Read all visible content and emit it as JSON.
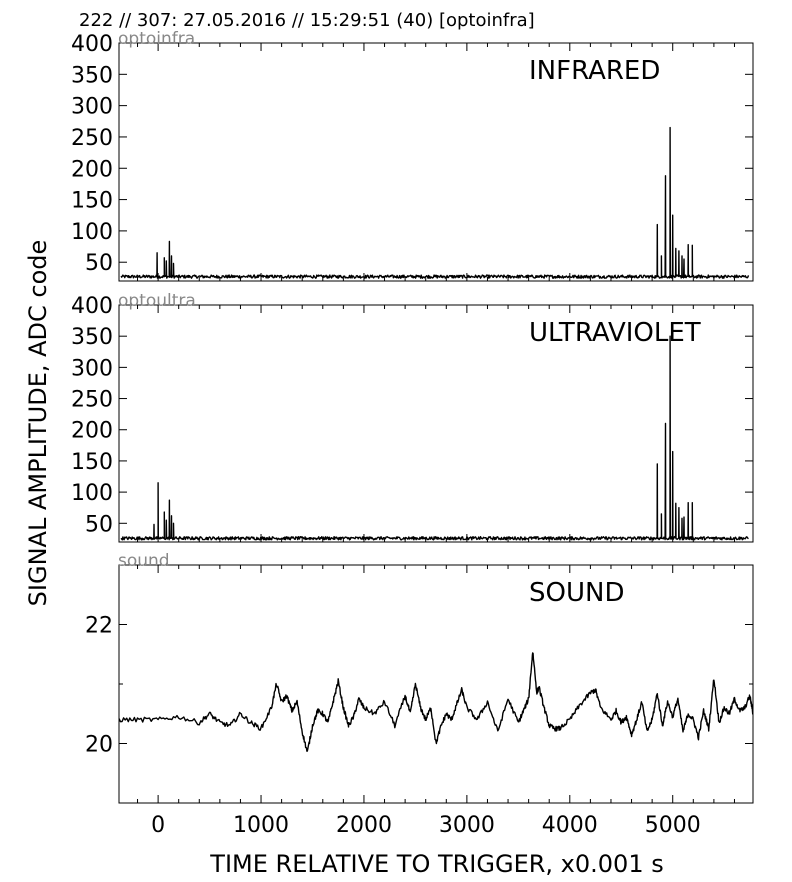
{
  "header": "222 // 307:   27.05.2016 // 15:29:51 (40)  [optoinfra]",
  "ylabel": "SIGNAL AMPLITUDE,  ADC code",
  "xlabel": "TIME RELATIVE TO TRIGGER,   x0.001 s",
  "colors": {
    "line": "#000000",
    "tag": "#888888"
  },
  "chart_data": [
    {
      "type": "line",
      "tag": "optoinfra",
      "title": "INFRARED",
      "xlim": [
        -380,
        5780
      ],
      "ylim": [
        20,
        400
      ],
      "xticks": [
        0,
        1000,
        2000,
        3000,
        4000,
        5000
      ],
      "yticks": [
        50,
        100,
        150,
        200,
        250,
        300,
        350,
        400
      ],
      "baseline": 27,
      "noise": 2.5,
      "spikes": [
        [
          -10,
          65
        ],
        [
          60,
          57
        ],
        [
          80,
          52
        ],
        [
          110,
          83
        ],
        [
          130,
          60
        ],
        [
          150,
          48
        ],
        [
          4850,
          110
        ],
        [
          4890,
          60
        ],
        [
          4930,
          188
        ],
        [
          4975,
          265
        ],
        [
          5000,
          125
        ],
        [
          5030,
          72
        ],
        [
          5060,
          68
        ],
        [
          5090,
          60
        ],
        [
          5110,
          55
        ],
        [
          5150,
          78
        ],
        [
          5190,
          77
        ]
      ]
    },
    {
      "type": "line",
      "tag": "optoultra",
      "title": "ULTRAVIOLET",
      "xlim": [
        -380,
        5780
      ],
      "ylim": [
        20,
        400
      ],
      "xticks": [
        0,
        1000,
        2000,
        3000,
        4000,
        5000
      ],
      "yticks": [
        50,
        100,
        150,
        200,
        250,
        300,
        350,
        400
      ],
      "baseline": 26,
      "noise": 2.5,
      "spikes": [
        [
          -40,
          48
        ],
        [
          0,
          115
        ],
        [
          60,
          68
        ],
        [
          80,
          55
        ],
        [
          110,
          87
        ],
        [
          130,
          62
        ],
        [
          150,
          50
        ],
        [
          4850,
          145
        ],
        [
          4890,
          65
        ],
        [
          4930,
          210
        ],
        [
          4975,
          350
        ],
        [
          5000,
          165
        ],
        [
          5030,
          82
        ],
        [
          5060,
          75
        ],
        [
          5090,
          58
        ],
        [
          5110,
          60
        ],
        [
          5150,
          83
        ],
        [
          5190,
          83
        ]
      ]
    },
    {
      "type": "line",
      "tag": "sound",
      "title": "SOUND",
      "xlim": [
        -380,
        5780
      ],
      "ylim": [
        19,
        23
      ],
      "xticks": [
        0,
        1000,
        2000,
        3000,
        4000,
        5000
      ],
      "yticks": [
        20,
        22
      ],
      "x": [
        -380,
        -200,
        0,
        200,
        400,
        500,
        600,
        700,
        800,
        900,
        1000,
        1100,
        1150,
        1200,
        1250,
        1300,
        1350,
        1400,
        1450,
        1500,
        1550,
        1600,
        1650,
        1700,
        1750,
        1800,
        1850,
        1900,
        1950,
        2000,
        2100,
        2200,
        2300,
        2400,
        2450,
        2500,
        2550,
        2600,
        2650,
        2700,
        2750,
        2800,
        2850,
        2900,
        2950,
        3000,
        3100,
        3200,
        3300,
        3400,
        3500,
        3550,
        3600,
        3640,
        3680,
        3700,
        3750,
        3800,
        3850,
        3900,
        4000,
        4100,
        4200,
        4250,
        4300,
        4400,
        4450,
        4500,
        4550,
        4600,
        4650,
        4700,
        4750,
        4800,
        4850,
        4900,
        4950,
        5000,
        5050,
        5100,
        5150,
        5200,
        5250,
        5300,
        5350,
        5400,
        5450,
        5500,
        5550,
        5600,
        5650,
        5700,
        5750,
        5780
      ],
      "y": [
        20.4,
        20.4,
        20.4,
        20.45,
        20.35,
        20.5,
        20.35,
        20.3,
        20.5,
        20.35,
        20.25,
        20.6,
        21.0,
        20.7,
        20.8,
        20.55,
        20.7,
        20.2,
        19.85,
        20.3,
        20.55,
        20.5,
        20.35,
        20.7,
        21.05,
        20.6,
        20.3,
        20.45,
        20.75,
        20.6,
        20.5,
        20.7,
        20.3,
        20.8,
        20.5,
        21.0,
        20.6,
        20.4,
        20.6,
        20.0,
        20.3,
        20.5,
        20.4,
        20.65,
        20.9,
        20.6,
        20.4,
        20.7,
        20.2,
        20.75,
        20.35,
        20.55,
        20.75,
        21.55,
        20.85,
        20.95,
        20.6,
        20.3,
        20.25,
        20.25,
        20.4,
        20.65,
        20.85,
        20.9,
        20.6,
        20.4,
        20.55,
        20.35,
        20.45,
        20.15,
        20.4,
        20.7,
        20.2,
        20.4,
        20.85,
        20.3,
        20.7,
        20.45,
        20.75,
        20.2,
        20.5,
        20.4,
        20.1,
        20.55,
        20.25,
        21.1,
        20.35,
        20.6,
        20.5,
        20.75,
        20.55,
        20.6,
        20.8,
        20.5
      ]
    }
  ]
}
